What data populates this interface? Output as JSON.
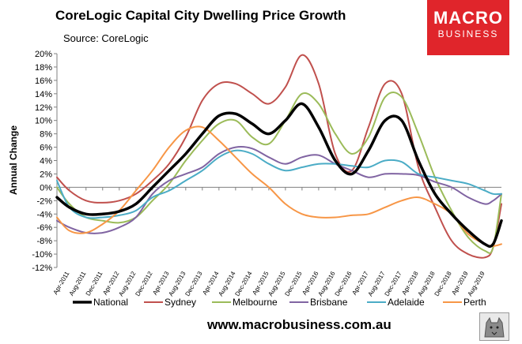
{
  "header": {
    "title": "CoreLogic Capital City Dwelling Price Growth",
    "source": "Source: CoreLogic"
  },
  "logo": {
    "line1": "MACRO",
    "line2": "BUSINESS"
  },
  "footer": {
    "url": "www.macrobusiness.com.au"
  },
  "chart_data": {
    "type": "line",
    "title": "CoreLogic Capital City Dwelling Price Growth",
    "ylabel": "Annual Change",
    "xlabel": "",
    "ylim": [
      -12,
      20
    ],
    "yticks": [
      "-12%",
      "-10%",
      "-8%",
      "-6%",
      "-4%",
      "-2%",
      "0%",
      "2%",
      "4%",
      "6%",
      "8%",
      "10%",
      "12%",
      "14%",
      "16%",
      "18%",
      "20%"
    ],
    "xticks": [
      "Apr-2011",
      "Aug-2011",
      "Dec-2011",
      "Apr-2012",
      "Aug-2012",
      "Dec-2012",
      "Apr-2013",
      "Aug-2013",
      "Dec-2013",
      "Apr-2014",
      "Aug-2014",
      "Dec-2014",
      "Apr-2015",
      "Aug-2015",
      "Dec-2015",
      "Apr-2016",
      "Aug-2016",
      "Dec-2016",
      "Apr-2017",
      "Aug-2017",
      "Dec-2017",
      "Apr-2018",
      "Aug-2018",
      "Dec-2018",
      "Apr-2019",
      "Aug-2019"
    ],
    "x_start": "Jan-2011",
    "x_end": "Dec-2019",
    "grid": false,
    "legend_position": "bottom",
    "series": [
      {
        "name": "National",
        "color": "#000000",
        "width": 3.5,
        "points": [
          [
            "Jan-2011",
            -1.5
          ],
          [
            "Apr-2011",
            -3
          ],
          [
            "Aug-2011",
            -4
          ],
          [
            "Dec-2011",
            -4
          ],
          [
            "Apr-2012",
            -3.6
          ],
          [
            "Aug-2012",
            -2.5
          ],
          [
            "Dec-2012",
            0
          ],
          [
            "Apr-2013",
            2.5
          ],
          [
            "Aug-2013",
            5
          ],
          [
            "Dec-2013",
            8
          ],
          [
            "Apr-2014",
            10.7
          ],
          [
            "Aug-2014",
            11
          ],
          [
            "Dec-2014",
            9.5
          ],
          [
            "Apr-2015",
            8
          ],
          [
            "Aug-2015",
            10
          ],
          [
            "Dec-2015",
            12.5
          ],
          [
            "Apr-2016",
            9
          ],
          [
            "Aug-2016",
            4
          ],
          [
            "Dec-2016",
            2
          ],
          [
            "Apr-2017",
            5.5
          ],
          [
            "Aug-2017",
            10
          ],
          [
            "Dec-2017",
            10
          ],
          [
            "Apr-2018",
            4
          ],
          [
            "Aug-2018",
            -1
          ],
          [
            "Dec-2018",
            -4
          ],
          [
            "Apr-2019",
            -6.5
          ],
          [
            "Aug-2019",
            -8.5
          ],
          [
            "Oct-2019",
            -8.5
          ],
          [
            "Dec-2019",
            -5
          ]
        ]
      },
      {
        "name": "Sydney",
        "color": "#c0504d",
        "width": 2,
        "points": [
          [
            "Jan-2011",
            1.5
          ],
          [
            "Apr-2011",
            -0.5
          ],
          [
            "Aug-2011",
            -2
          ],
          [
            "Dec-2011",
            -2.3
          ],
          [
            "Apr-2012",
            -2
          ],
          [
            "Aug-2012",
            -1
          ],
          [
            "Dec-2012",
            1
          ],
          [
            "Apr-2013",
            3.5
          ],
          [
            "Aug-2013",
            7.5
          ],
          [
            "Dec-2013",
            13
          ],
          [
            "Apr-2014",
            15.5
          ],
          [
            "Aug-2014",
            15.5
          ],
          [
            "Dec-2014",
            14
          ],
          [
            "Apr-2015",
            12.5
          ],
          [
            "Aug-2015",
            15
          ],
          [
            "Dec-2015",
            19.8
          ],
          [
            "Apr-2016",
            15.5
          ],
          [
            "Aug-2016",
            5
          ],
          [
            "Dec-2016",
            2.5
          ],
          [
            "Apr-2017",
            9
          ],
          [
            "Aug-2017",
            15.5
          ],
          [
            "Dec-2017",
            14
          ],
          [
            "Apr-2018",
            3
          ],
          [
            "Aug-2018",
            -3
          ],
          [
            "Dec-2018",
            -8
          ],
          [
            "Apr-2019",
            -10
          ],
          [
            "Aug-2019",
            -10.5
          ],
          [
            "Oct-2019",
            -9
          ],
          [
            "Dec-2019",
            -2.5
          ]
        ]
      },
      {
        "name": "Melbourne",
        "color": "#9bbb59",
        "width": 2,
        "points": [
          [
            "Jan-2011",
            0
          ],
          [
            "Apr-2011",
            -2.5
          ],
          [
            "Aug-2011",
            -4.5
          ],
          [
            "Dec-2011",
            -5
          ],
          [
            "Apr-2012",
            -5.3
          ],
          [
            "Aug-2012",
            -4.5
          ],
          [
            "Dec-2012",
            -2
          ],
          [
            "Apr-2013",
            0.5
          ],
          [
            "Aug-2013",
            4
          ],
          [
            "Dec-2013",
            7
          ],
          [
            "Apr-2014",
            9.5
          ],
          [
            "Aug-2014",
            10
          ],
          [
            "Dec-2014",
            7.5
          ],
          [
            "Apr-2015",
            6.5
          ],
          [
            "Aug-2015",
            10
          ],
          [
            "Dec-2015",
            14
          ],
          [
            "Apr-2016",
            12.5
          ],
          [
            "Aug-2016",
            8
          ],
          [
            "Dec-2016",
            5
          ],
          [
            "Apr-2017",
            7.5
          ],
          [
            "Aug-2017",
            13.5
          ],
          [
            "Dec-2017",
            13.5
          ],
          [
            "Apr-2018",
            8
          ],
          [
            "Aug-2018",
            1.5
          ],
          [
            "Dec-2018",
            -3.5
          ],
          [
            "Apr-2019",
            -7.5
          ],
          [
            "Aug-2019",
            -9.5
          ],
          [
            "Oct-2019",
            -9
          ],
          [
            "Dec-2019",
            -1
          ]
        ]
      },
      {
        "name": "Brisbane",
        "color": "#8064a2",
        "width": 2,
        "points": [
          [
            "Jan-2011",
            -5
          ],
          [
            "Apr-2011",
            -6
          ],
          [
            "Aug-2011",
            -6.8
          ],
          [
            "Dec-2011",
            -6.8
          ],
          [
            "Apr-2012",
            -6
          ],
          [
            "Aug-2012",
            -4.5
          ],
          [
            "Dec-2012",
            -1
          ],
          [
            "Apr-2013",
            1
          ],
          [
            "Aug-2013",
            2
          ],
          [
            "Dec-2013",
            3
          ],
          [
            "Apr-2014",
            5
          ],
          [
            "Aug-2014",
            6
          ],
          [
            "Dec-2014",
            5.8
          ],
          [
            "Apr-2015",
            4.5
          ],
          [
            "Aug-2015",
            3.5
          ],
          [
            "Dec-2015",
            4.5
          ],
          [
            "Apr-2016",
            4.8
          ],
          [
            "Aug-2016",
            3.5
          ],
          [
            "Dec-2016",
            2.5
          ],
          [
            "Apr-2017",
            1.5
          ],
          [
            "Aug-2017",
            2
          ],
          [
            "Dec-2017",
            2
          ],
          [
            "Apr-2018",
            1.8
          ],
          [
            "Aug-2018",
            0.8
          ],
          [
            "Dec-2018",
            0
          ],
          [
            "Apr-2019",
            -1.5
          ],
          [
            "Aug-2019",
            -2.5
          ],
          [
            "Oct-2019",
            -2
          ],
          [
            "Dec-2019",
            -1
          ]
        ]
      },
      {
        "name": "Adelaide",
        "color": "#4bacc6",
        "width": 2,
        "points": [
          [
            "Jan-2011",
            1
          ],
          [
            "Apr-2011",
            -3
          ],
          [
            "Aug-2011",
            -4.5
          ],
          [
            "Dec-2011",
            -4.5
          ],
          [
            "Apr-2012",
            -4.2
          ],
          [
            "Aug-2012",
            -3.5
          ],
          [
            "Dec-2012",
            -1.5
          ],
          [
            "Apr-2013",
            -0.5
          ],
          [
            "Aug-2013",
            1
          ],
          [
            "Dec-2013",
            2.5
          ],
          [
            "Apr-2014",
            4.5
          ],
          [
            "Aug-2014",
            5.5
          ],
          [
            "Dec-2014",
            5
          ],
          [
            "Apr-2015",
            3.5
          ],
          [
            "Aug-2015",
            2.5
          ],
          [
            "Dec-2015",
            3
          ],
          [
            "Apr-2016",
            3.5
          ],
          [
            "Aug-2016",
            3.5
          ],
          [
            "Dec-2016",
            3.2
          ],
          [
            "Apr-2017",
            3
          ],
          [
            "Aug-2017",
            4
          ],
          [
            "Dec-2017",
            3.8
          ],
          [
            "Apr-2018",
            2
          ],
          [
            "Aug-2018",
            1.5
          ],
          [
            "Dec-2018",
            1
          ],
          [
            "Apr-2019",
            0.5
          ],
          [
            "Aug-2019",
            -0.5
          ],
          [
            "Oct-2019",
            -1
          ],
          [
            "Dec-2019",
            -1
          ]
        ]
      },
      {
        "name": "Perth",
        "color": "#f79646",
        "width": 2,
        "points": [
          [
            "Jan-2011",
            -4.5
          ],
          [
            "Apr-2011",
            -6.5
          ],
          [
            "Aug-2011",
            -6.8
          ],
          [
            "Dec-2011",
            -5.5
          ],
          [
            "Apr-2012",
            -3.5
          ],
          [
            "Aug-2012",
            -0.5
          ],
          [
            "Dec-2012",
            2.5
          ],
          [
            "Apr-2013",
            6
          ],
          [
            "Aug-2013",
            8.5
          ],
          [
            "Dec-2013",
            9
          ],
          [
            "Apr-2014",
            7
          ],
          [
            "Aug-2014",
            4.5
          ],
          [
            "Dec-2014",
            2
          ],
          [
            "Apr-2015",
            0
          ],
          [
            "Aug-2015",
            -2.5
          ],
          [
            "Dec-2015",
            -4
          ],
          [
            "Apr-2016",
            -4.5
          ],
          [
            "Aug-2016",
            -4.5
          ],
          [
            "Dec-2016",
            -4.2
          ],
          [
            "Apr-2017",
            -4
          ],
          [
            "Aug-2017",
            -3
          ],
          [
            "Dec-2017",
            -2
          ],
          [
            "Apr-2018",
            -1.5
          ],
          [
            "Aug-2018",
            -2.5
          ],
          [
            "Dec-2018",
            -4
          ],
          [
            "Apr-2019",
            -7
          ],
          [
            "Aug-2019",
            -8.5
          ],
          [
            "Oct-2019",
            -8.8
          ],
          [
            "Dec-2019",
            -8.5
          ]
        ]
      }
    ]
  }
}
